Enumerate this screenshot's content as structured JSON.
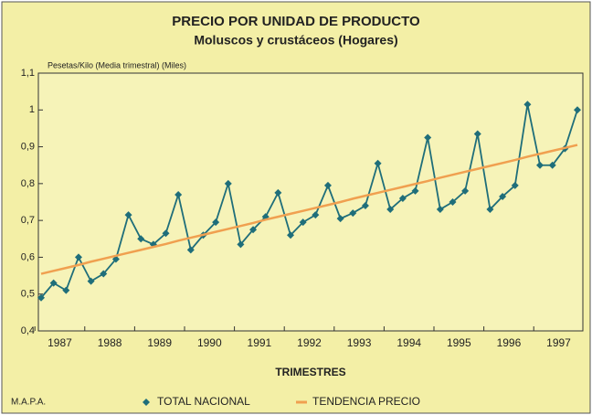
{
  "chart_data": {
    "type": "line",
    "title": "PRECIO POR UNIDAD DE PRODUCTO",
    "subtitle": "Moluscos y crustáceos (Hogares)",
    "y_label": "Pesetas/Kilo (Media trimestral) (Miles)",
    "x_label": "TRIMESTRES",
    "source": "M.A.P.A.",
    "categories": [
      "1987",
      null,
      null,
      null,
      "1988",
      null,
      null,
      null,
      "1989",
      null,
      null,
      null,
      "1990",
      null,
      null,
      null,
      "1991",
      null,
      null,
      null,
      "1992",
      null,
      null,
      null,
      "1993",
      null,
      null,
      null,
      "1994",
      null,
      null,
      null,
      "1995",
      null,
      null,
      null,
      "1996",
      null,
      null,
      null,
      "1997",
      null,
      null,
      null
    ],
    "series": [
      {
        "name": "TOTAL NACIONAL",
        "color": "#1f6e7a",
        "values": [
          0.49,
          0.53,
          0.51,
          0.6,
          0.535,
          0.555,
          0.595,
          0.715,
          0.65,
          0.635,
          0.665,
          0.77,
          0.62,
          0.66,
          0.695,
          0.8,
          0.635,
          0.675,
          0.71,
          0.775,
          0.66,
          0.695,
          0.715,
          0.795,
          0.705,
          0.72,
          0.74,
          0.855,
          0.73,
          0.76,
          0.78,
          0.925,
          0.73,
          0.75,
          0.78,
          0.935,
          0.73,
          0.765,
          0.795,
          1.015,
          0.85,
          0.85,
          0.895,
          1.0
        ]
      },
      {
        "name": "TENDENCIA PRECIO",
        "color": "#f0a050",
        "values": [
          0.555,
          0.563,
          0.571,
          0.579,
          0.588,
          0.596,
          0.604,
          0.612,
          0.62,
          0.628,
          0.636,
          0.645,
          0.653,
          0.661,
          0.669,
          0.677,
          0.685,
          0.693,
          0.702,
          0.71,
          0.718,
          0.726,
          0.734,
          0.742,
          0.75,
          0.759,
          0.767,
          0.775,
          0.783,
          0.791,
          0.799,
          0.807,
          0.816,
          0.824,
          0.832,
          0.84,
          0.848,
          0.856,
          0.864,
          0.873,
          0.881,
          0.889,
          0.897,
          0.905
        ]
      }
    ],
    "ylim": [
      0.4,
      1.1
    ],
    "yticks": [
      {
        "value": 0.4,
        "label": "0,4"
      },
      {
        "value": 0.5,
        "label": "0,5"
      },
      {
        "value": 0.6,
        "label": "0,6"
      },
      {
        "value": 0.7,
        "label": "0,7"
      },
      {
        "value": 0.8,
        "label": "0,8"
      },
      {
        "value": 0.9,
        "label": "0,9"
      },
      1,
      {
        "value": 1.1,
        "label": "1,1"
      }
    ]
  }
}
